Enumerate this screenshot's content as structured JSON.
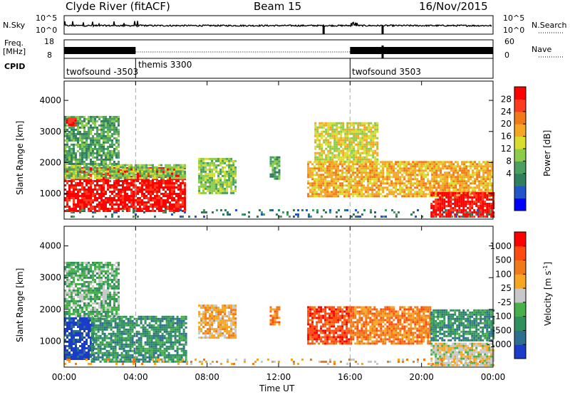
{
  "header": {
    "station": "Clyde River (fitACF)",
    "beam": "Beam 15",
    "date": "16/Nov/2015"
  },
  "top_panels": {
    "nsky_label": "N.Sky",
    "nsearch_label": "N.Search",
    "nsky_ticks": [
      "10^5",
      "10^0"
    ],
    "nsearch_ticks": [
      "10^5",
      "10^0"
    ],
    "freq_label_line1": "Freq.",
    "freq_label_line2": "[MHz]",
    "freq_ticks": [
      "18",
      "8"
    ],
    "nave_label": "Nave",
    "nave_ticks": [
      "60",
      "0"
    ],
    "cpid_label": "CPID",
    "cpid_segments": [
      {
        "label": "twofsound -3503",
        "start_hour": 0.0,
        "end_hour": 4.0
      },
      {
        "label": "themis 3300",
        "start_hour": 4.0,
        "end_hour": 16.0
      },
      {
        "label": "twofsound 3503",
        "start_hour": 16.0,
        "end_hour": 24.0
      }
    ]
  },
  "power_colorbar": {
    "title": "Power [dB]",
    "ticks": [
      "28",
      "24",
      "20",
      "16",
      "12",
      "8",
      "4"
    ],
    "colors": [
      "#0000ff",
      "#2255c8",
      "#2f7f5f",
      "#4aa060",
      "#8ccc4a",
      "#d8dd30",
      "#f5a623",
      "#f07a1a",
      "#ff3b1f",
      "#ff0000"
    ]
  },
  "velocity_colorbar": {
    "title": "Velocity [m s^-1]",
    "title_main": "Velocity",
    "title_unit": "[m s",
    "title_exp": "-1",
    "title_close": "]",
    "ticks": [
      "1000",
      "500",
      "100",
      "25",
      "-25",
      "-100",
      "-500",
      "-1000"
    ],
    "colors": [
      "#1a3cc8",
      "#2e6e8e",
      "#2f8f5f",
      "#48b04a",
      "#c8c8c8",
      "#f5a623",
      "#f07a1a",
      "#ff4a10",
      "#ff0000"
    ]
  },
  "chart_data": {
    "type": "heatmap",
    "x_axis": {
      "label": "Time UT",
      "range_hours": [
        0,
        24
      ],
      "tick_hours": [
        0,
        4,
        8,
        12,
        16,
        20,
        24
      ],
      "tick_labels": [
        "00:00",
        "04:00",
        "08:00",
        "12:00",
        "16:00",
        "20:00",
        "00:00"
      ]
    },
    "y_axis": {
      "label": "Slant Range [km]",
      "range_km": [
        180,
        4620
      ],
      "ticks": [
        1000,
        2000,
        3000,
        4000
      ]
    },
    "dashed_lines_hours": [
      4,
      16
    ],
    "panels": [
      {
        "name": "power",
        "regions": [
          {
            "t0": 0.0,
            "t1": 6.8,
            "r0": 450,
            "r1": 1850,
            "level": 9
          },
          {
            "t0": 0.0,
            "t1": 6.8,
            "r0": 1500,
            "r1": 1950,
            "level": 4
          },
          {
            "t0": 0.0,
            "t1": 3.0,
            "r0": 1950,
            "r1": 3500,
            "level": 3
          },
          {
            "t0": 0.1,
            "t1": 0.6,
            "r0": 3200,
            "r1": 3450,
            "level": 9
          },
          {
            "t0": 7.5,
            "t1": 9.6,
            "r0": 1050,
            "r1": 2150,
            "level": 4
          },
          {
            "t0": 11.5,
            "t1": 12.0,
            "r0": 1500,
            "r1": 2200,
            "level": 3
          },
          {
            "t0": 13.6,
            "t1": 24.0,
            "r0": 950,
            "r1": 2050,
            "level": 6
          },
          {
            "t0": 14.0,
            "t1": 17.5,
            "r0": 2050,
            "r1": 3300,
            "level": 5
          },
          {
            "t0": 20.5,
            "t1": 24.0,
            "r0": 280,
            "r1": 1050,
            "level": 9
          },
          {
            "t0": 0.0,
            "t1": 24.0,
            "r0": 250,
            "r1": 500,
            "level": 2
          }
        ]
      },
      {
        "name": "velocity",
        "regions": [
          {
            "t0": 0.0,
            "t1": 1.6,
            "r0": 450,
            "r1": 1750,
            "level": 0
          },
          {
            "t0": 1.5,
            "t1": 6.8,
            "r0": 350,
            "r1": 1800,
            "level": 2
          },
          {
            "t0": 0.0,
            "t1": 3.0,
            "r0": 1800,
            "r1": 3500,
            "level": 3
          },
          {
            "t0": 7.5,
            "t1": 9.6,
            "r0": 1100,
            "r1": 2150,
            "level": 5
          },
          {
            "t0": 11.5,
            "t1": 12.0,
            "r0": 1500,
            "r1": 2100,
            "level": 6
          },
          {
            "t0": 13.6,
            "t1": 16.0,
            "r0": 950,
            "r1": 2100,
            "level": 7
          },
          {
            "t0": 16.0,
            "t1": 20.5,
            "r0": 900,
            "r1": 2100,
            "level": 6
          },
          {
            "t0": 20.5,
            "t1": 24.0,
            "r0": 1000,
            "r1": 2000,
            "level": 2
          },
          {
            "t0": 20.5,
            "t1": 24.0,
            "r0": 250,
            "r1": 950,
            "level": 4
          },
          {
            "t0": 0.0,
            "t1": 24.0,
            "r0": 250,
            "r1": 450,
            "level": 5
          }
        ]
      }
    ]
  }
}
